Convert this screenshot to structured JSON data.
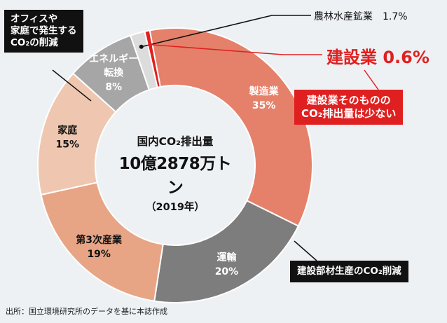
{
  "chart_data": {
    "type": "pie",
    "donut": true,
    "categories": [
      "エネルギー転換",
      "農林水産鉱業",
      "建設業",
      "製造業",
      "運輸",
      "第3次産業",
      "家庭"
    ],
    "category_lines": [
      [
        "エネルギー",
        "転換"
      ],
      [
        "農林水産鉱業"
      ],
      [
        "建設業"
      ],
      [
        "製造業"
      ],
      [
        "運輸"
      ],
      [
        "第3次産業"
      ],
      [
        "家庭"
      ]
    ],
    "values": [
      8,
      1.7,
      0.6,
      35,
      20,
      19,
      15
    ],
    "value_labels": [
      "8%",
      "1.7%",
      "0.6%",
      "35%",
      "20%",
      "19%",
      "15%"
    ],
    "colors": [
      "#a6a6a6",
      "#dcdcdc",
      "#e02020",
      "#e5816a",
      "#7d7d7d",
      "#e7a586",
      "#efc7b0"
    ],
    "label_colors": [
      "#ffffff",
      "#111111",
      "#e02020",
      "#ffffff",
      "#ffffff",
      "#111111",
      "#111111"
    ],
    "center": {
      "title": "国内CO₂排出量",
      "value": "10億2878万トン",
      "year": "（2019年）"
    }
  },
  "labels": {
    "agriculture": "農林水産鉱業　1.7%",
    "construction": "建設業 0.6%"
  },
  "callouts": {
    "office": [
      "オフィスや",
      "家庭で発生する",
      "CO₂の削減"
    ],
    "construction": [
      "建設業そのものの",
      "CO₂排出量は少ない"
    ],
    "materials": "建設部材生産のCO₂削減"
  },
  "source": "出所：国立環境研究所のデータを基に本誌作成"
}
